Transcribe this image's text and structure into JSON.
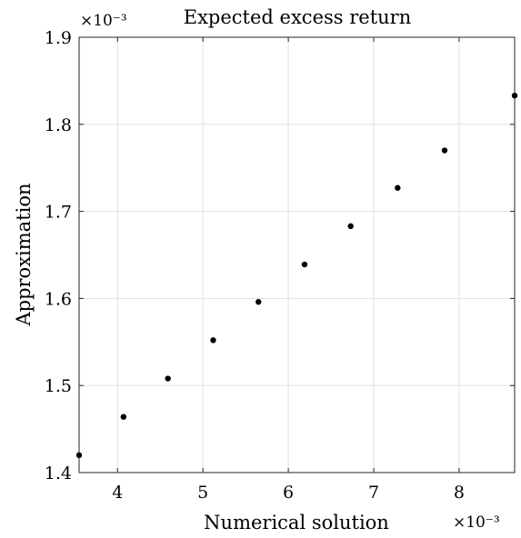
{
  "chart_data": {
    "type": "scatter",
    "title": "Expected excess return",
    "xlabel": "Numerical solution",
    "ylabel": "Approximation",
    "x_multiplier": "×10⁻³",
    "y_multiplier": "×10⁻³",
    "x_unit_scale": "1e-3",
    "y_unit_scale": "1e-3",
    "xlim": [
      3.55,
      8.65
    ],
    "ylim": [
      1.4,
      1.9
    ],
    "xticks": [
      4,
      5,
      6,
      7,
      8
    ],
    "yticks": [
      1.4,
      1.5,
      1.6,
      1.7,
      1.8,
      1.9
    ],
    "xtick_labels": [
      "4",
      "5",
      "6",
      "7",
      "8"
    ],
    "ytick_labels": [
      "1.4",
      "1.5",
      "1.6",
      "1.7",
      "1.8",
      "1.9"
    ],
    "grid": true,
    "marker_color": "#000000",
    "grid_color": "#e0e0e0",
    "x": [
      3.55,
      4.07,
      4.59,
      5.12,
      5.65,
      6.19,
      6.73,
      7.28,
      7.83,
      8.65
    ],
    "y": [
      1.42,
      1.464,
      1.508,
      1.552,
      1.596,
      1.639,
      1.683,
      1.727,
      1.77,
      1.833
    ]
  }
}
